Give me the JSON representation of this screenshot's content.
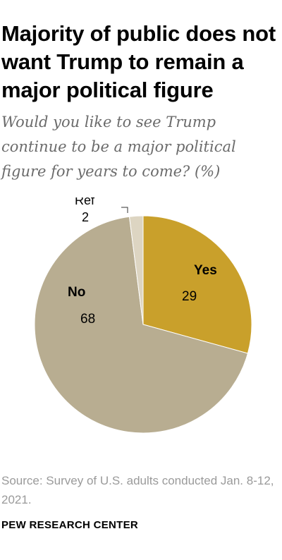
{
  "header": {
    "title": "Majority of public does not want Trump to remain a major political figure",
    "subtitle": "Would you like to see Trump continue to be a major political figure for years to come? (%)"
  },
  "chart_data": {
    "type": "pie",
    "slices": [
      {
        "label": "Yes",
        "value": 29,
        "color": "#c9a02b"
      },
      {
        "label": "No",
        "value": 68,
        "color": "#b8ad91"
      },
      {
        "label": "Ref",
        "value": 2,
        "color": "#ddd5c2"
      }
    ],
    "start": "top, clockwise"
  },
  "footer": {
    "source": "Source: Survey of U.S. adults conducted Jan. 8-12, 2021.",
    "brand": "PEW RESEARCH CENTER"
  }
}
